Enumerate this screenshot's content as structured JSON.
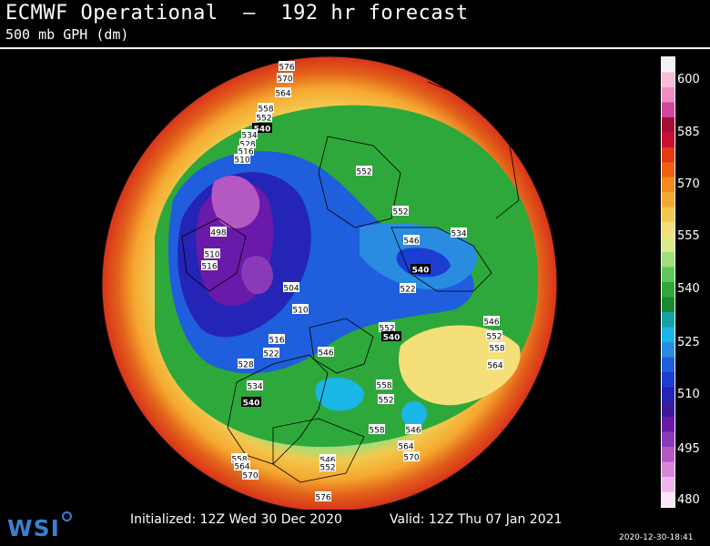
{
  "header": {
    "title": "ECMWF Operational  —  192 hr forecast",
    "subtitle": "500 mb GPH (dm)"
  },
  "legend": {
    "labels": [
      "600",
      "585",
      "570",
      "555",
      "540",
      "525",
      "510",
      "495",
      "480"
    ],
    "colors": [
      "#f5f0f5",
      "#f7bcd6",
      "#f28bc0",
      "#d0479e",
      "#a90e3a",
      "#c8102e",
      "#e23a12",
      "#f06010",
      "#f28a1c",
      "#f5a830",
      "#f3c84e",
      "#f5df78",
      "#d8ed8a",
      "#9fe07a",
      "#5ec95a",
      "#2ea83a",
      "#1a8a30",
      "#16a0a8",
      "#1ab6e6",
      "#2a8ce0",
      "#1f5edc",
      "#1c3cd2",
      "#2424b6",
      "#3a1a9a",
      "#6a1aa8",
      "#8a3ab8",
      "#b458c4",
      "#d886d8",
      "#efb6ee",
      "#fbe6fb"
    ]
  },
  "map": {
    "contour_labels": [
      {
        "text": "576",
        "bold": false
      },
      {
        "text": "570",
        "bold": false
      },
      {
        "text": "564",
        "bold": false
      },
      {
        "text": "558",
        "bold": false
      },
      {
        "text": "552",
        "bold": false
      },
      {
        "text": "540",
        "bold": true
      },
      {
        "text": "534",
        "bold": false
      },
      {
        "text": "528",
        "bold": false
      },
      {
        "text": "516",
        "bold": false
      },
      {
        "text": "510",
        "bold": false
      },
      {
        "text": "498",
        "bold": false
      },
      {
        "text": "510",
        "bold": false
      },
      {
        "text": "516",
        "bold": false
      },
      {
        "text": "504",
        "bold": false
      },
      {
        "text": "510",
        "bold": false
      },
      {
        "text": "516",
        "bold": false
      },
      {
        "text": "522",
        "bold": false
      },
      {
        "text": "528",
        "bold": false
      },
      {
        "text": "534",
        "bold": false
      },
      {
        "text": "540",
        "bold": true
      },
      {
        "text": "552",
        "bold": false
      },
      {
        "text": "552",
        "bold": false
      },
      {
        "text": "546",
        "bold": false
      },
      {
        "text": "534",
        "bold": false
      },
      {
        "text": "540",
        "bold": true
      },
      {
        "text": "522",
        "bold": false
      },
      {
        "text": "552",
        "bold": false
      },
      {
        "text": "540",
        "bold": true
      },
      {
        "text": "546",
        "bold": false
      },
      {
        "text": "546",
        "bold": false
      },
      {
        "text": "552",
        "bold": false
      },
      {
        "text": "558",
        "bold": false
      },
      {
        "text": "564",
        "bold": false
      },
      {
        "text": "558",
        "bold": false
      },
      {
        "text": "552",
        "bold": false
      },
      {
        "text": "546",
        "bold": false
      },
      {
        "text": "558",
        "bold": false
      },
      {
        "text": "564",
        "bold": false
      },
      {
        "text": "570",
        "bold": false
      },
      {
        "text": "546",
        "bold": false
      },
      {
        "text": "552",
        "bold": false
      },
      {
        "text": "558",
        "bold": false
      },
      {
        "text": "564",
        "bold": false
      },
      {
        "text": "570",
        "bold": false
      },
      {
        "text": "576",
        "bold": false
      }
    ]
  },
  "footer": {
    "initialized": "Initialized: 12Z Wed 30 Dec 2020",
    "valid": "Valid: 12Z Thu 07 Jan 2021",
    "logo": "WSI",
    "timestamp": "2020-12-30-18:41"
  }
}
